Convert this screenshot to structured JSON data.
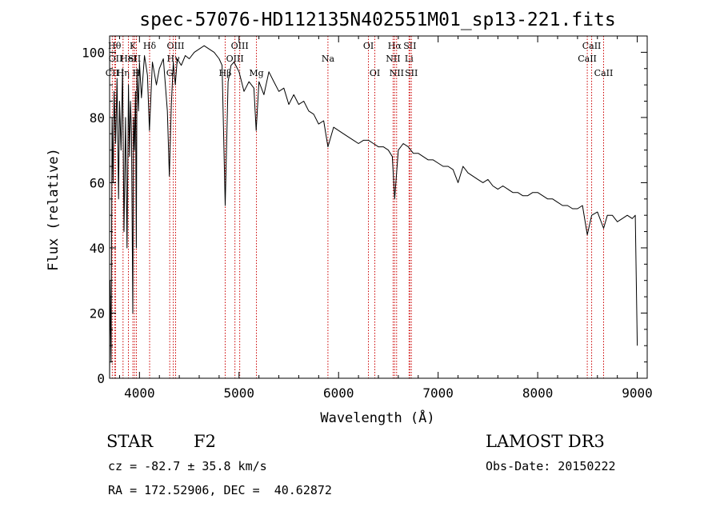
{
  "chart_data": {
    "type": "line",
    "title": "spec-57076-HD112135N402551M01_sp13-221.fits",
    "xlabel": "Wavelength (Å)",
    "ylabel": "Flux (relative)",
    "xlim": [
      3700,
      9100
    ],
    "ylim": [
      0,
      105
    ],
    "xticks": [
      4000,
      5000,
      6000,
      7000,
      8000,
      9000
    ],
    "yticks": [
      0,
      20,
      40,
      60,
      80,
      100
    ],
    "series": [
      {
        "name": "spectrum",
        "x": [
          3700,
          3705,
          3715,
          3725,
          3735,
          3745,
          3760,
          3775,
          3790,
          3800,
          3815,
          3830,
          3845,
          3860,
          3875,
          3890,
          3900,
          3910,
          3920,
          3933,
          3940,
          3950,
          3960,
          3968,
          3975,
          3990,
          4000,
          4020,
          4050,
          4080,
          4100,
          4130,
          4170,
          4200,
          4240,
          4280,
          4300,
          4320,
          4340,
          4360,
          4380,
          4420,
          4460,
          4500,
          4550,
          4600,
          4650,
          4700,
          4750,
          4800,
          4830,
          4861,
          4890,
          4920,
          4950,
          5000,
          5050,
          5100,
          5150,
          5172,
          5200,
          5250,
          5300,
          5350,
          5400,
          5450,
          5500,
          5550,
          5600,
          5650,
          5700,
          5750,
          5800,
          5850,
          5893,
          5950,
          6000,
          6050,
          6100,
          6150,
          6200,
          6250,
          6300,
          6350,
          6400,
          6450,
          6500,
          6540,
          6563,
          6600,
          6650,
          6700,
          6750,
          6800,
          6850,
          6900,
          6950,
          7000,
          7050,
          7100,
          7150,
          7200,
          7250,
          7300,
          7350,
          7400,
          7450,
          7500,
          7550,
          7600,
          7650,
          7700,
          7750,
          7800,
          7850,
          7900,
          7950,
          8000,
          8050,
          8100,
          8150,
          8200,
          8250,
          8300,
          8350,
          8400,
          8450,
          8498,
          8542,
          8600,
          8662,
          8700,
          8750,
          8800,
          8850,
          8900,
          8950,
          8980,
          9000
        ],
        "y": [
          0,
          30,
          5,
          80,
          60,
          88,
          72,
          92,
          55,
          85,
          70,
          95,
          45,
          80,
          40,
          90,
          68,
          85,
          75,
          20,
          80,
          70,
          88,
          40,
          95,
          82,
          97,
          86,
          99,
          93,
          76,
          97,
          90,
          95,
          98,
          82,
          62,
          84,
          97,
          90,
          98,
          96,
          99,
          98,
          100,
          101,
          102,
          101,
          100,
          98,
          96,
          53,
          91,
          96,
          97,
          94,
          88,
          91,
          89,
          76,
          91,
          87,
          94,
          91,
          88,
          89,
          84,
          87,
          84,
          85,
          82,
          81,
          78,
          79,
          71,
          77,
          76,
          75,
          74,
          73,
          72,
          73,
          73,
          72,
          71,
          71,
          70,
          68,
          55,
          70,
          72,
          71,
          69,
          69,
          68,
          67,
          67,
          66,
          65,
          65,
          64,
          60,
          65,
          63,
          62,
          61,
          60,
          61,
          59,
          58,
          59,
          58,
          57,
          57,
          56,
          56,
          57,
          57,
          56,
          55,
          55,
          54,
          53,
          53,
          52,
          52,
          53,
          44,
          50,
          51,
          46,
          50,
          50,
          48,
          49,
          50,
          49,
          50,
          10
        ]
      }
    ],
    "line_markers": [
      {
        "name": "CII",
        "x": 3727,
        "row": 3
      },
      {
        "name": "Hθ",
        "x": 3750,
        "row": 1
      },
      {
        "name": "OII",
        "x": 3760,
        "row": 2
      },
      {
        "name": "Hη",
        "x": 3835,
        "row": 3
      },
      {
        "name": "HeI",
        "x": 3889,
        "row": 2
      },
      {
        "name": "K",
        "x": 3934,
        "row": 1
      },
      {
        "name": "SII",
        "x": 3950,
        "row": 2
      },
      {
        "name": "H",
        "x": 3969,
        "row": 3
      },
      {
        "name": "Hδ",
        "x": 4102,
        "row": 1
      },
      {
        "name": "OIII",
        "x": 4363,
        "row": 1
      },
      {
        "name": "Hγ",
        "x": 4340,
        "row": 2
      },
      {
        "name": "G",
        "x": 4304,
        "row": 3
      },
      {
        "name": "OIII",
        "x": 5007,
        "row": 1
      },
      {
        "name": "OIII",
        "x": 4959,
        "row": 2
      },
      {
        "name": "Hβ",
        "x": 4861,
        "row": 3
      },
      {
        "name": "Mg",
        "x": 5175,
        "row": 3
      },
      {
        "name": "Na",
        "x": 5893,
        "row": 2
      },
      {
        "name": "OI",
        "x": 6300,
        "row": 1
      },
      {
        "name": "OI",
        "x": 6364,
        "row": 3
      },
      {
        "name": "Hα",
        "x": 6563,
        "row": 1
      },
      {
        "name": "NII",
        "x": 6548,
        "row": 2
      },
      {
        "name": "NII",
        "x": 6583,
        "row": 3
      },
      {
        "name": "SII",
        "x": 6716,
        "row": 1
      },
      {
        "name": "Li",
        "x": 6708,
        "row": 2
      },
      {
        "name": "SII",
        "x": 6731,
        "row": 3
      },
      {
        "name": "CaII",
        "x": 8542,
        "row": 1
      },
      {
        "name": "CaII",
        "x": 8498,
        "row": 2
      },
      {
        "name": "CaII",
        "x": 8662,
        "row": 3
      }
    ],
    "colors": {
      "spectrum": "#000000",
      "markers": "#cc0000",
      "axes": "#000000"
    }
  },
  "info": {
    "class_label": "STAR",
    "subclass": "F2",
    "survey": "LAMOST DR3",
    "cz": "cz = -82.7 ± 35.8 km/s",
    "obs_date": "Obs-Date: 20150222",
    "radec": "RA = 172.52906, DEC =  40.62872"
  }
}
